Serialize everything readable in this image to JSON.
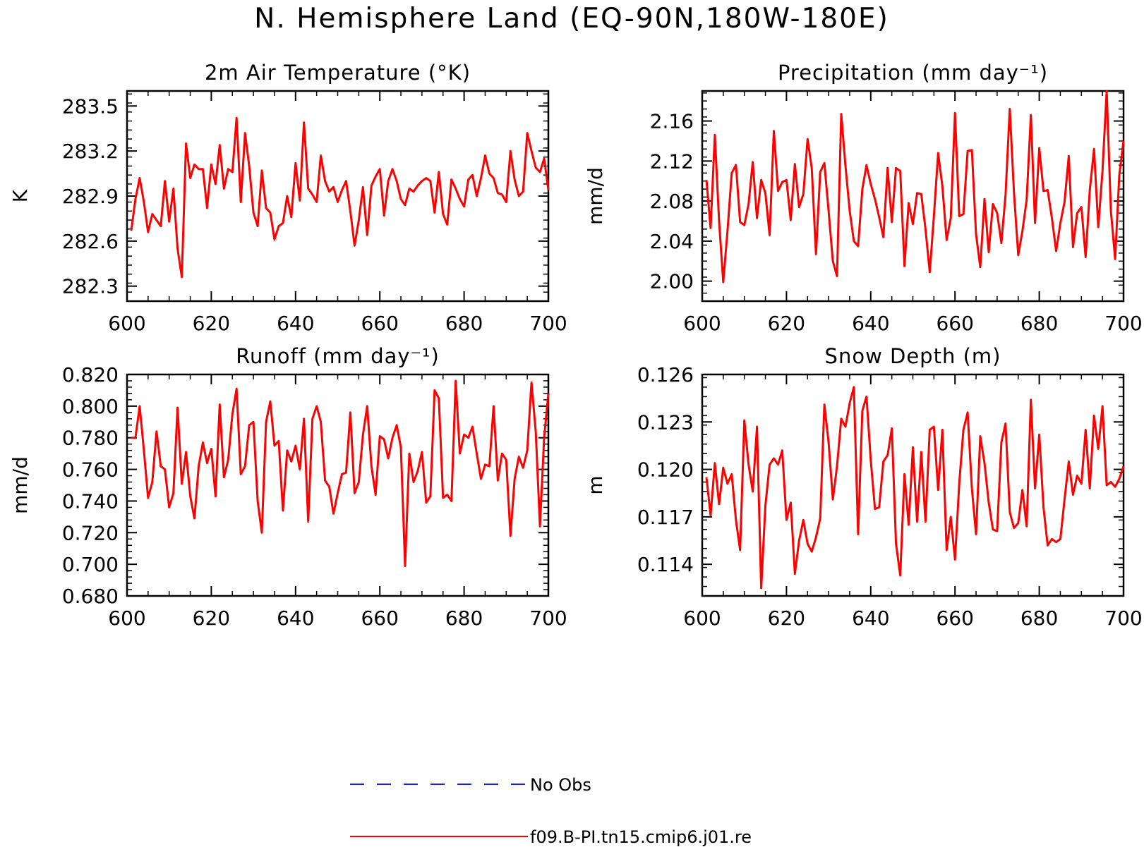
{
  "figure": {
    "title": "N. Hemisphere Land (EQ-90N,180W-180E)"
  },
  "legend": {
    "entries": [
      {
        "label": "No Obs",
        "color": "#1a1aff",
        "style": "dashed"
      },
      {
        "label": "f09.B-PI.tn15.cmip6.j01.re",
        "color": "#ff0000",
        "style": "solid"
      }
    ]
  },
  "chart_data": [
    {
      "type": "line",
      "title": "2m Air Temperature (°K)",
      "ylabel": "K",
      "xlim": [
        600,
        700
      ],
      "ylim": [
        282.2,
        283.6
      ],
      "xticks": [
        "600",
        "620",
        "640",
        "660",
        "680",
        "700"
      ],
      "yticks": [
        "282.3",
        "282.6",
        "282.9",
        "283.2",
        "283.5"
      ],
      "x_start": 601,
      "series": [
        {
          "name": "f09.B-PI.tn15.cmip6.j01.re",
          "color": "#ff0000",
          "values": [
            282.67,
            282.88,
            283.02,
            282.86,
            282.66,
            282.78,
            282.74,
            282.7,
            283.0,
            282.73,
            282.95,
            282.55,
            282.36,
            283.25,
            283.02,
            283.11,
            283.08,
            283.08,
            282.82,
            283.11,
            282.98,
            283.24,
            282.95,
            283.08,
            283.06,
            283.42,
            282.86,
            283.32,
            283.1,
            282.79,
            282.7,
            283.07,
            282.82,
            282.79,
            282.61,
            282.7,
            282.72,
            282.9,
            282.76,
            283.12,
            282.87,
            283.39,
            282.95,
            282.91,
            282.86,
            283.17,
            283.0,
            282.93,
            282.96,
            282.86,
            282.94,
            283.0,
            282.8,
            282.57,
            282.74,
            282.96,
            282.64,
            282.97,
            283.03,
            283.08,
            282.77,
            283.0,
            283.08,
            283.0,
            282.88,
            282.84,
            282.95,
            282.93,
            282.97,
            283.0,
            283.02,
            283.0,
            282.79,
            283.06,
            282.78,
            282.71,
            283.01,
            282.95,
            282.88,
            282.83,
            283.01,
            283.04,
            282.9,
            283.02,
            283.17,
            283.05,
            283.02,
            282.92,
            282.91,
            282.86,
            283.2,
            283.01,
            282.9,
            282.93,
            283.32,
            283.2,
            283.09,
            283.06,
            283.15,
            282.94
          ]
        }
      ]
    },
    {
      "type": "line",
      "title": "Precipitation (mm day⁻¹)",
      "ylabel": "mm/d",
      "xlim": [
        600,
        700
      ],
      "ylim": [
        1.98,
        2.19
      ],
      "xticks": [
        "600",
        "620",
        "640",
        "660",
        "680",
        "700"
      ],
      "yticks": [
        "2.00",
        "2.04",
        "2.08",
        "2.12",
        "2.16"
      ],
      "x_start": 601,
      "series": [
        {
          "name": "f09.B-PI.tn15.cmip6.j01.re",
          "color": "#ff0000",
          "values": [
            2.101,
            2.053,
            2.146,
            2.06,
            1.999,
            2.05,
            2.108,
            2.116,
            2.059,
            2.056,
            2.077,
            2.119,
            2.063,
            2.101,
            2.088,
            2.046,
            2.15,
            2.09,
            2.099,
            2.101,
            2.061,
            2.117,
            2.074,
            2.087,
            2.142,
            2.113,
            2.027,
            2.109,
            2.118,
            2.07,
            2.02,
            2.005,
            2.167,
            2.115,
            2.07,
            2.04,
            2.035,
            2.092,
            2.116,
            2.097,
            2.082,
            2.064,
            2.044,
            2.113,
            2.059,
            2.113,
            2.11,
            2.015,
            2.078,
            2.057,
            2.088,
            2.087,
            2.052,
            2.009,
            2.065,
            2.128,
            2.095,
            2.041,
            2.063,
            2.168,
            2.065,
            2.067,
            2.13,
            2.131,
            2.047,
            2.014,
            2.082,
            2.029,
            2.077,
            2.068,
            2.038,
            2.086,
            2.172,
            2.088,
            2.026,
            2.05,
            2.081,
            2.166,
            2.058,
            2.133,
            2.09,
            2.091,
            2.063,
            2.03,
            2.058,
            2.079,
            2.125,
            2.034,
            2.068,
            2.074,
            2.024,
            2.091,
            2.132,
            2.054,
            2.11,
            2.19,
            2.07,
            2.022,
            2.106,
            2.14
          ]
        }
      ]
    },
    {
      "type": "line",
      "title": "Runoff (mm day⁻¹)",
      "ylabel": "mm/d",
      "xlim": [
        600,
        700
      ],
      "ylim": [
        0.68,
        0.82
      ],
      "xticks": [
        "600",
        "620",
        "640",
        "660",
        "680",
        "700"
      ],
      "yticks": [
        "0.680",
        "0.700",
        "0.720",
        "0.740",
        "0.760",
        "0.780",
        "0.800",
        "0.820"
      ],
      "x_start": 601,
      "series": [
        {
          "name": "f09.B-PI.tn15.cmip6.j01.re",
          "color": "#ff0000",
          "values": [
            0.78,
            0.78,
            0.8,
            0.772,
            0.742,
            0.752,
            0.784,
            0.762,
            0.76,
            0.736,
            0.745,
            0.799,
            0.751,
            0.771,
            0.743,
            0.729,
            0.762,
            0.777,
            0.764,
            0.773,
            0.743,
            0.801,
            0.755,
            0.766,
            0.795,
            0.811,
            0.757,
            0.762,
            0.788,
            0.79,
            0.74,
            0.72,
            0.79,
            0.803,
            0.775,
            0.778,
            0.734,
            0.772,
            0.765,
            0.775,
            0.76,
            0.792,
            0.727,
            0.792,
            0.8,
            0.79,
            0.753,
            0.749,
            0.732,
            0.745,
            0.757,
            0.758,
            0.796,
            0.745,
            0.752,
            0.782,
            0.8,
            0.762,
            0.744,
            0.781,
            0.779,
            0.767,
            0.78,
            0.788,
            0.774,
            0.699,
            0.77,
            0.752,
            0.759,
            0.771,
            0.739,
            0.743,
            0.81,
            0.805,
            0.742,
            0.744,
            0.74,
            0.816,
            0.77,
            0.782,
            0.78,
            0.787,
            0.77,
            0.754,
            0.763,
            0.762,
            0.8,
            0.753,
            0.77,
            0.766,
            0.718,
            0.754,
            0.768,
            0.761,
            0.772,
            0.815,
            0.784,
            0.724,
            0.78,
            0.808
          ]
        }
      ]
    },
    {
      "type": "line",
      "title": "Snow Depth (m)",
      "ylabel": "m",
      "xlim": [
        600,
        700
      ],
      "ylim": [
        0.112,
        0.126
      ],
      "xticks": [
        "600",
        "620",
        "640",
        "660",
        "680",
        "700"
      ],
      "yticks": [
        "0.114",
        "0.117",
        "0.120",
        "0.123",
        "0.126"
      ],
      "x_start": 601,
      "series": [
        {
          "name": "f09.B-PI.tn15.cmip6.j01.re",
          "color": "#ff0000",
          "values": [
            0.1195,
            0.1171,
            0.1204,
            0.1178,
            0.1201,
            0.1191,
            0.1197,
            0.1168,
            0.1149,
            0.1231,
            0.1203,
            0.1186,
            0.1227,
            0.1125,
            0.1177,
            0.1203,
            0.1207,
            0.1203,
            0.1212,
            0.1168,
            0.1179,
            0.1134,
            0.1155,
            0.1168,
            0.1153,
            0.1148,
            0.1157,
            0.1169,
            0.1241,
            0.1217,
            0.1181,
            0.1202,
            0.1232,
            0.1227,
            0.1242,
            0.1252,
            0.1159,
            0.1237,
            0.1246,
            0.1206,
            0.1175,
            0.1176,
            0.1205,
            0.1209,
            0.1226,
            0.1153,
            0.1133,
            0.1197,
            0.1165,
            0.1214,
            0.1167,
            0.1211,
            0.1167,
            0.1225,
            0.1227,
            0.1187,
            0.1225,
            0.1149,
            0.117,
            0.1143,
            0.1191,
            0.1225,
            0.1236,
            0.1188,
            0.1159,
            0.1221,
            0.1204,
            0.1179,
            0.1162,
            0.1161,
            0.1217,
            0.1229,
            0.1173,
            0.1163,
            0.1166,
            0.1187,
            0.1164,
            0.1244,
            0.1188,
            0.1222,
            0.1176,
            0.1152,
            0.1156,
            0.1154,
            0.1156,
            0.1181,
            0.1205,
            0.1184,
            0.1196,
            0.1191,
            0.1225,
            0.1188,
            0.1234,
            0.1213,
            0.124,
            0.119,
            0.1192,
            0.1189,
            0.1194,
            0.1202
          ]
        }
      ]
    }
  ]
}
